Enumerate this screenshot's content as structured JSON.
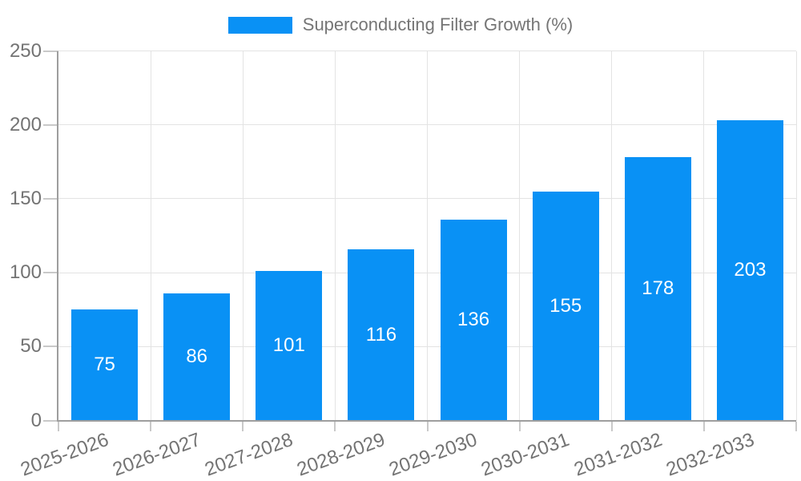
{
  "chart_data": {
    "type": "bar",
    "title": "",
    "legend": "Superconducting Filter Growth (%)",
    "legend_position": "top",
    "categories": [
      "2025-2026",
      "2026-2027",
      "2027-2028",
      "2028-2029",
      "2029-2030",
      "2030-2031",
      "2031-2032",
      "2032-2033"
    ],
    "values": [
      75,
      86,
      101,
      116,
      136,
      155,
      178,
      203
    ],
    "value_labels_inside_bars": true,
    "xlabel": "",
    "ylabel": "",
    "ylim": [
      0,
      250
    ],
    "yticks": [
      0,
      50,
      100,
      150,
      200,
      250
    ],
    "grid": true,
    "x_tick_rotation_deg": -20,
    "bar_color": "#0991f5",
    "value_label_color": "#ffffff"
  },
  "colors": {
    "background": "#ffffff",
    "bar": "#0991f5",
    "grid": "#e3e3e3",
    "axis": "#9e9e9e",
    "tick": "#c9c9c9",
    "tick_label_text": "#737373",
    "legend_text": "#757575",
    "bar_value_text": "#ffffff"
  }
}
